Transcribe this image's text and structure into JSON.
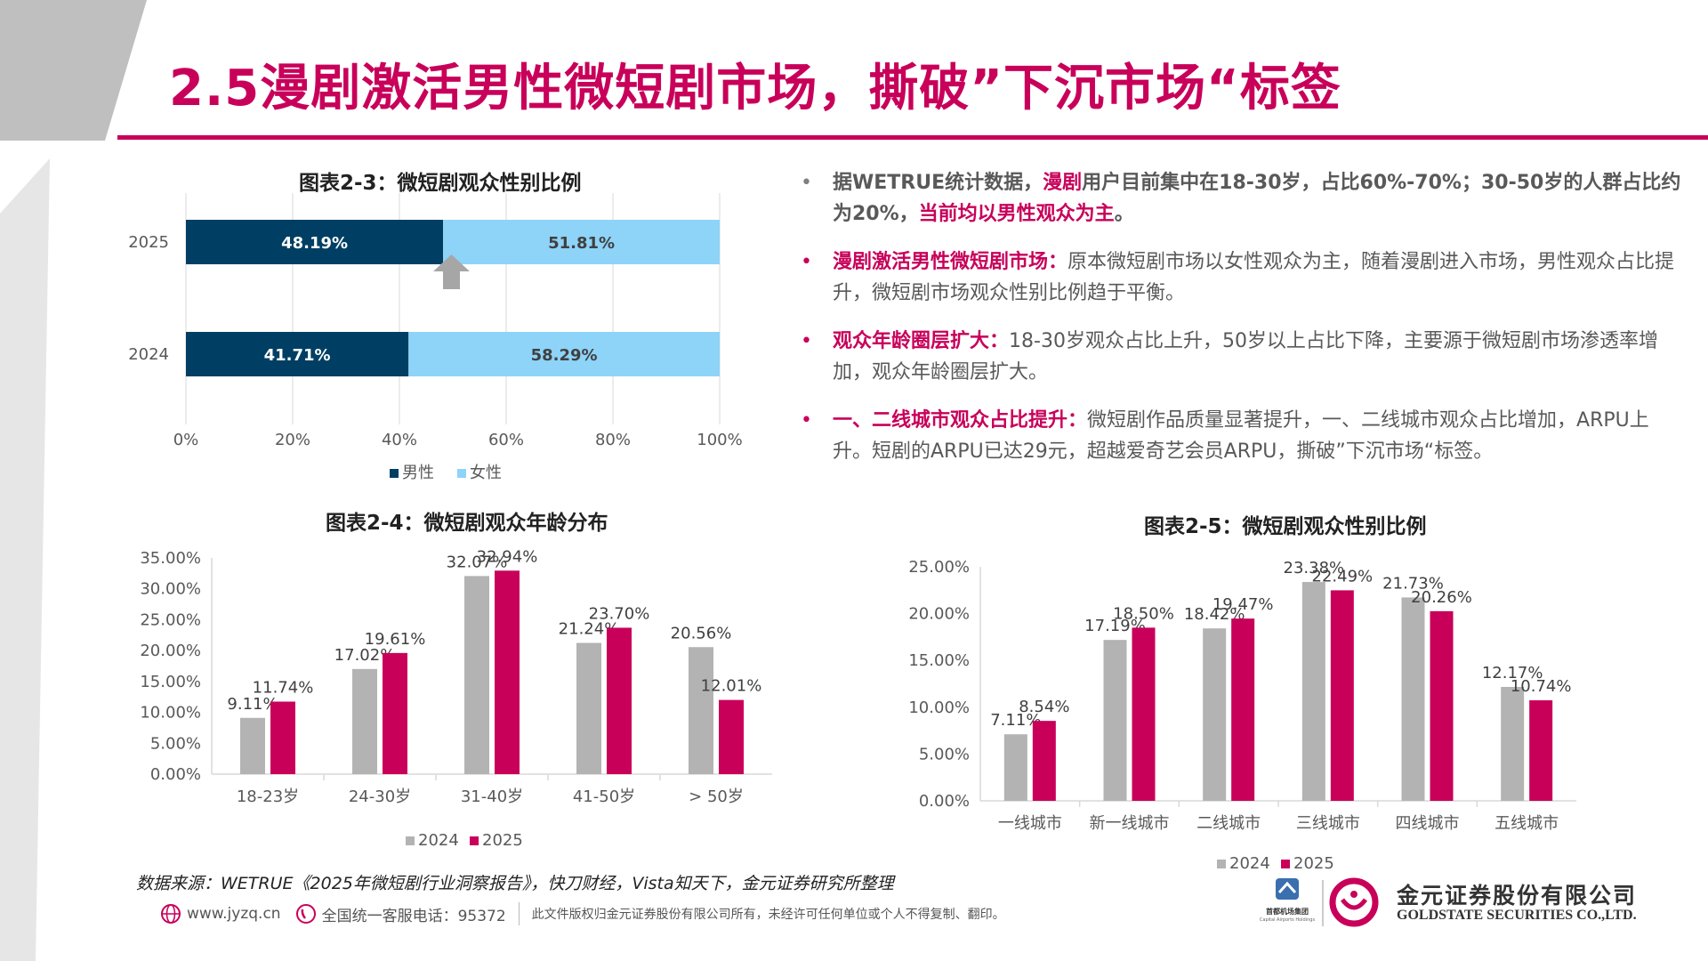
{
  "header": {
    "title": "2.5漫剧激活男性微短剧市场，撕破”下沉市场“标签"
  },
  "colors": {
    "accent": "#c8005a",
    "navy": "#003f63",
    "light_blue": "#8ed3f8",
    "gray": "#b3b3b3"
  },
  "charts": {
    "gender": {
      "title": "图表2-3：微短剧观众性别比例"
    },
    "age": {
      "title": "图表2-4：微短剧观众年龄分布"
    },
    "city": {
      "title": "图表2-5：微短剧观众性别比例"
    }
  },
  "chart_data": [
    {
      "type": "bar",
      "orientation": "horizontal-stacked-100",
      "title": "图表2-3：微短剧观众性别比例",
      "categories": [
        "2025",
        "2024"
      ],
      "series": [
        {
          "name": "男性",
          "values": [
            48.19,
            41.71
          ],
          "labels": [
            "48.19%",
            "41.71%"
          ],
          "color": "#003f63"
        },
        {
          "name": "女性",
          "values": [
            51.81,
            58.29
          ],
          "labels": [
            "51.81%",
            "58.29%"
          ],
          "color": "#8ed3f8"
        }
      ],
      "xlim": [
        0,
        100
      ],
      "xticks": [
        "0%",
        "20%",
        "40%",
        "60%",
        "80%",
        "100%"
      ],
      "legend": "bottom",
      "grid": true
    },
    {
      "type": "bar",
      "title": "图表2-4：微短剧观众年龄分布",
      "categories": [
        "18-23岁",
        "24-30岁",
        "31-40岁",
        "41-50岁",
        "> 50岁"
      ],
      "series": [
        {
          "name": "2024",
          "values": [
            9.11,
            17.02,
            32.07,
            21.24,
            20.56
          ],
          "labels": [
            "9.11%",
            "17.02%",
            "32.07%",
            "21.24%",
            "20.56%"
          ],
          "color": "#b3b3b3"
        },
        {
          "name": "2025",
          "values": [
            11.74,
            19.61,
            32.94,
            23.7,
            12.01
          ],
          "labels": [
            "11.74%",
            "19.61%",
            "32.94%",
            "23.70%",
            "12.01%"
          ],
          "color": "#c8005a"
        }
      ],
      "ylim": [
        0,
        35
      ],
      "yticks": [
        "0.00%",
        "5.00%",
        "10.00%",
        "15.00%",
        "20.00%",
        "25.00%",
        "30.00%",
        "35.00%"
      ],
      "legend": "bottom",
      "grid": false
    },
    {
      "type": "bar",
      "title": "图表2-5：微短剧观众性别比例",
      "categories": [
        "一线城市",
        "新一线城市",
        "二线城市",
        "三线城市",
        "四线城市",
        "五线城市"
      ],
      "series": [
        {
          "name": "2024",
          "values": [
            7.11,
            17.19,
            18.42,
            23.38,
            21.73,
            12.17
          ],
          "labels": [
            "7.11%",
            "17.19%",
            "18.42%",
            "23.38%",
            "21.73%",
            "12.17%"
          ],
          "color": "#b3b3b3"
        },
        {
          "name": "2025",
          "values": [
            8.54,
            18.5,
            19.47,
            22.49,
            20.26,
            10.74
          ],
          "labels": [
            "8.54%",
            "18.50%",
            "19.47%",
            "22.49%",
            "20.26%",
            "10.74%"
          ],
          "color": "#c8005a"
        }
      ],
      "ylim": [
        0,
        25
      ],
      "yticks": [
        "0.00%",
        "5.00%",
        "10.00%",
        "15.00%",
        "20.00%",
        "25.00%"
      ],
      "legend": "bottom",
      "grid": false
    }
  ],
  "bullets": [
    {
      "parts": [
        {
          "text": "据WETRUE统计数据，",
          "style": "strong"
        },
        {
          "text": "漫剧",
          "style": "mag"
        },
        {
          "text": "用户目前集中在18-30岁，占比60%-70%；30-50岁的人群占比约为20%，",
          "style": "strong"
        },
        {
          "text": "当前均以男性观众为主",
          "style": "mag"
        },
        {
          "text": "。",
          "style": "strong"
        }
      ]
    },
    {
      "parts": [
        {
          "text": "漫剧激活男性微短剧市场：",
          "style": "mag"
        },
        {
          "text": "原本微短剧市场以女性观众为主，随着漫剧进入市场，男性观众占比提升，微短剧市场观众性别比例趋于平衡。",
          "style": ""
        }
      ]
    },
    {
      "parts": [
        {
          "text": "观众年龄圈层扩大：",
          "style": "mag"
        },
        {
          "text": "18-30岁观众占比上升，50岁以上占比下降，主要源于微短剧市场渗透率增加，观众年龄圈层扩大。",
          "style": ""
        }
      ]
    },
    {
      "parts": [
        {
          "text": "一、二线城市观众占比提升：",
          "style": "mag"
        },
        {
          "text": "微短剧作品质量显著提升，一、二线城市观众占比增加，ARPU上升。短剧的ARPU已达29元，超越爱奇艺会员ARPU，撕破”下沉市场“标签。",
          "style": ""
        }
      ]
    }
  ],
  "source": "数据来源：WETRUE《2025年微短剧行业洞察报告》，快刀财经，Vista知天下，金元证券研究所整理",
  "footer": {
    "website": "www.jyzq.cn",
    "hotline": "全国统一客服电话：95372",
    "copyright": "此文件版权归金元证券股份有限公司所有，未经许可任何单位或个人不得复制、翻印。"
  },
  "logo": {
    "group_name": "首都机场集团",
    "group_name_en": "Capital Airports Holdings",
    "company_cn": "金元证券股份有限公司",
    "company_en": "GOLDSTATE SECURITIES CO.,LTD."
  }
}
